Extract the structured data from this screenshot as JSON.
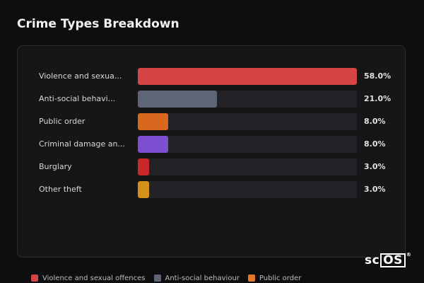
{
  "title": "Crime Types Breakdown",
  "chart_data": {
    "type": "bar",
    "orientation": "horizontal",
    "title": "Crime Types Breakdown",
    "categories": [
      "Violence and sexua...",
      "Anti-social behavi...",
      "Public order",
      "Criminal damage an...",
      "Burglary",
      "Other theft"
    ],
    "values": [
      58.0,
      21.0,
      8.0,
      8.0,
      3.0,
      3.0
    ],
    "value_labels": [
      "58.0%",
      "21.0%",
      "8.0%",
      "8.0%",
      "3.0%",
      "3.0%"
    ],
    "colors": [
      "#d64545",
      "#5e6675",
      "#d7681e",
      "#7b4fd0",
      "#c9282a",
      "#d4901a"
    ],
    "xlim": [
      0,
      58
    ]
  },
  "legend": [
    {
      "label": "Violence and sexual offences",
      "color": "#d64545"
    },
    {
      "label": "Anti-social behaviour",
      "color": "#5e6675"
    },
    {
      "label": "Public order",
      "color": "#e5762a"
    }
  ],
  "logo": {
    "left": "sc",
    "box": "OS",
    "mark": "®"
  }
}
